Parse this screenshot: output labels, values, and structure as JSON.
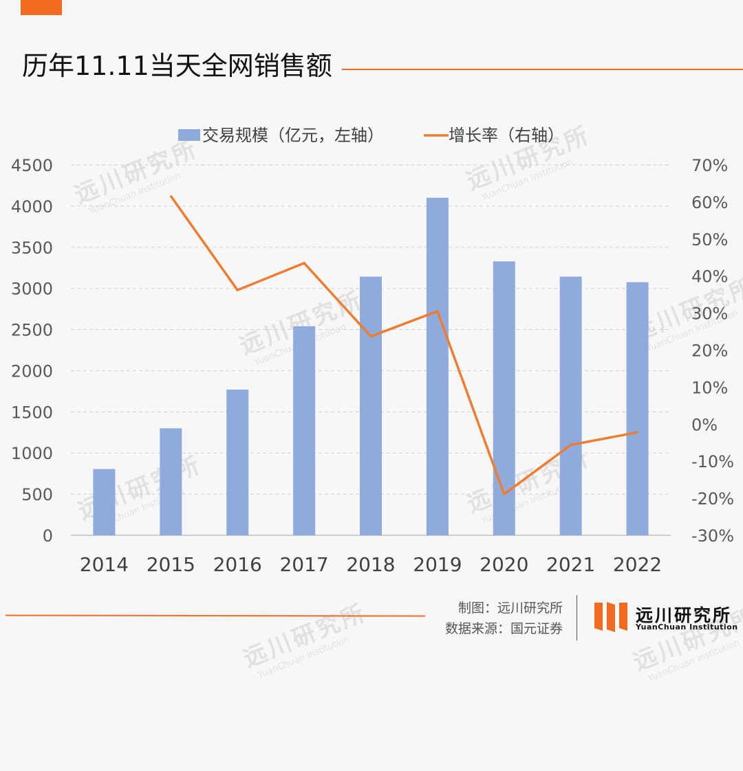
{
  "title": "历年11.11当天全网销售额",
  "footer": {
    "made_by": "制图：远川研究所",
    "source": "数据来源：国元证券"
  },
  "logo": {
    "name": "远川研究所",
    "subtitle": "YuanChuan Institution"
  },
  "watermark": {
    "name": "远川研究所",
    "subtitle": "YuanChuan Institution"
  },
  "colors": {
    "accent": "#f26b21",
    "bar": "#8faadc",
    "line": "#ed7d31"
  },
  "chart_data": {
    "type": "bar",
    "categories": [
      "2014",
      "2015",
      "2016",
      "2017",
      "2018",
      "2019",
      "2020",
      "2021",
      "2022"
    ],
    "series": [
      {
        "name": "交易规模（亿元，左轴）",
        "type": "bar",
        "axis": "left",
        "values": [
          805,
          1300,
          1770,
          2540,
          3143,
          4101,
          3328,
          3143,
          3075
        ]
      },
      {
        "name": "增长率（右轴）",
        "type": "line",
        "axis": "right",
        "values": [
          null,
          61.6,
          36.2,
          43.5,
          23.7,
          30.5,
          -18.9,
          -5.6,
          -2.2
        ]
      }
    ],
    "y_left": {
      "min": 0,
      "max": 4500,
      "ticks": [
        "0",
        "500",
        "1000",
        "1500",
        "2000",
        "2500",
        "3000",
        "3500",
        "4000",
        "4500"
      ]
    },
    "y_right": {
      "min": -30,
      "max": 70,
      "ticks": [
        "-30%",
        "-20%",
        "-10%",
        "0%",
        "10%",
        "20%",
        "30%",
        "40%",
        "50%",
        "60%",
        "70%"
      ]
    },
    "grid": true,
    "legend_position": "top"
  }
}
